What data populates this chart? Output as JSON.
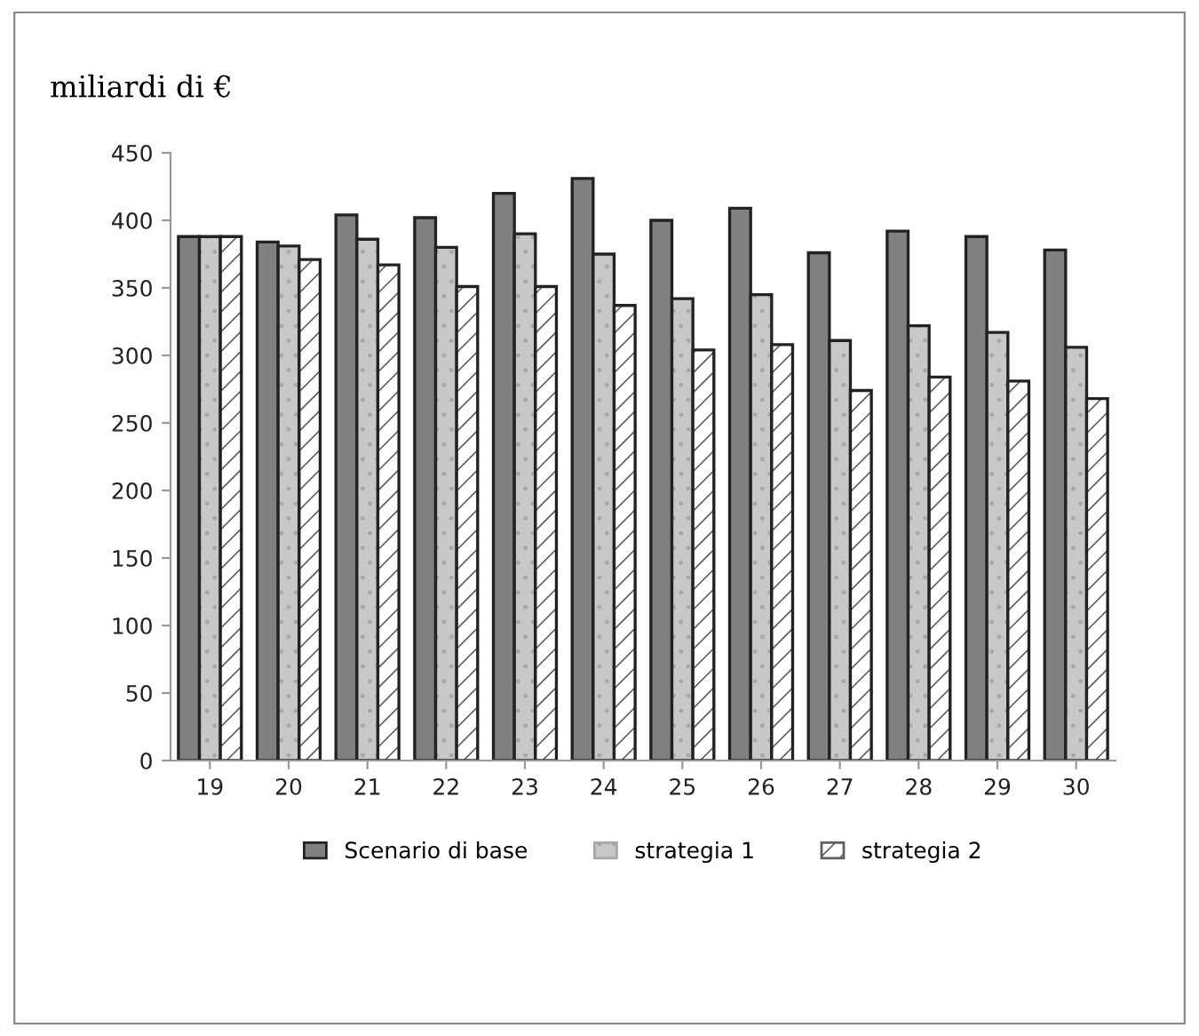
{
  "chart_data": {
    "type": "bar",
    "ylabel": "miliardi di €",
    "categories": [
      "19",
      "20",
      "21",
      "22",
      "23",
      "24",
      "25",
      "26",
      "27",
      "28",
      "29",
      "30"
    ],
    "series": [
      {
        "name": "Scenario di base",
        "color": "#808080",
        "values": [
          388,
          384,
          404,
          402,
          420,
          431,
          400,
          409,
          376,
          392,
          388,
          378
        ]
      },
      {
        "name": "strategia 1",
        "color": "#c8c8c8",
        "values": [
          388,
          381,
          386,
          380,
          390,
          375,
          342,
          345,
          311,
          322,
          317,
          306
        ]
      },
      {
        "name": "strategia 2",
        "color": "#ffffff",
        "values": [
          388,
          371,
          367,
          351,
          351,
          337,
          304,
          308,
          274,
          284,
          281,
          268
        ]
      }
    ],
    "ylim": [
      0,
      450
    ],
    "yticks": [
      0,
      50,
      100,
      150,
      200,
      250,
      300,
      350,
      400,
      450
    ],
    "grid": false,
    "legend": "bottom"
  }
}
